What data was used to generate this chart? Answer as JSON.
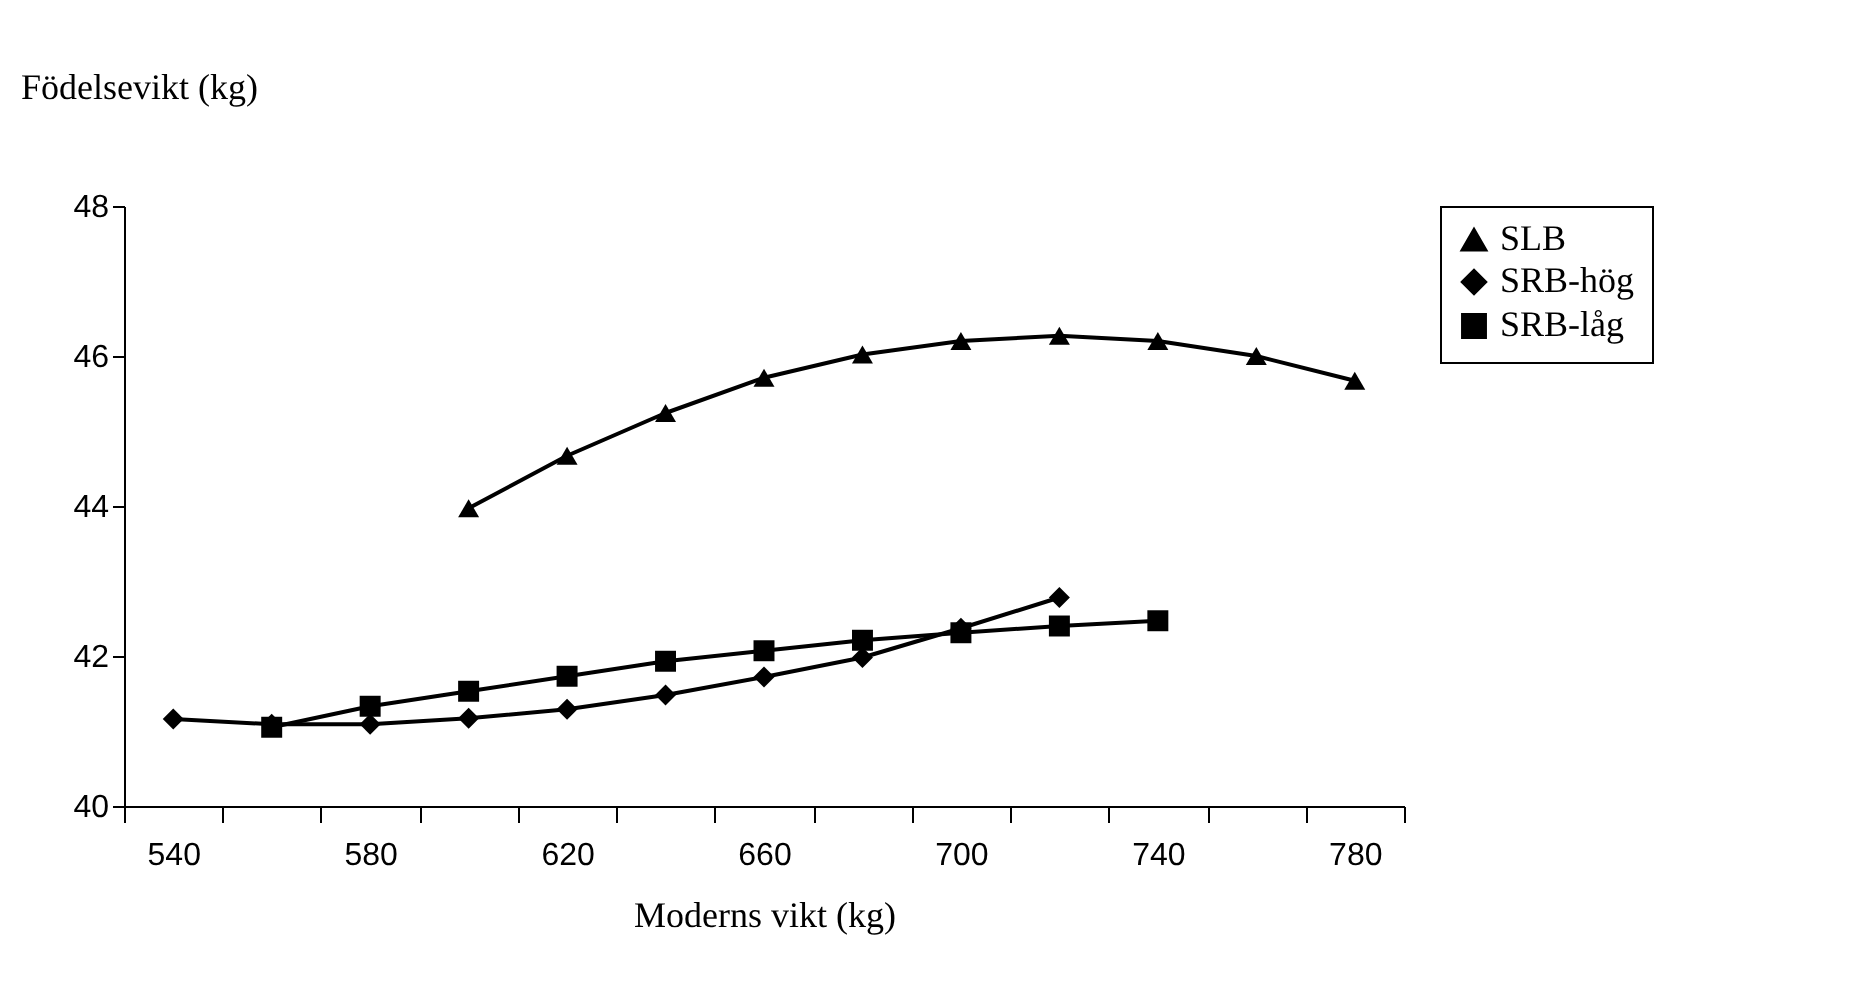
{
  "chart_data": {
    "type": "line",
    "xlabel": "Moderns vikt (kg)",
    "ylabel": "Födelsevikt (kg)",
    "categories": [
      "540",
      null,
      "580",
      null,
      "620",
      null,
      "660",
      null,
      "700",
      null,
      "740",
      null,
      "780"
    ],
    "series": [
      {
        "name": "SLB",
        "color": "#000000",
        "marker": "triangle",
        "values": [
          null,
          null,
          null,
          43.97,
          44.67,
          45.24,
          45.71,
          46.02,
          46.2,
          46.27,
          46.2,
          46.0,
          45.67
        ]
      },
      {
        "name": "SRB-hög",
        "color": "#000000",
        "marker": "diamond",
        "values": [
          41.16,
          41.09,
          41.09,
          41.17,
          41.29,
          41.48,
          41.72,
          41.98,
          42.37,
          42.78,
          null,
          null,
          null
        ]
      },
      {
        "name": "SRB-låg",
        "color": "#000000",
        "marker": "square",
        "values": [
          null,
          41.05,
          41.33,
          41.53,
          41.73,
          41.93,
          42.07,
          42.21,
          42.31,
          42.4,
          42.47,
          null,
          null
        ]
      }
    ],
    "ylim": [
      40,
      48
    ],
    "yticks": [
      40,
      42,
      44,
      46,
      48
    ],
    "grid": false,
    "legend": "right",
    "line_style": "solid"
  }
}
